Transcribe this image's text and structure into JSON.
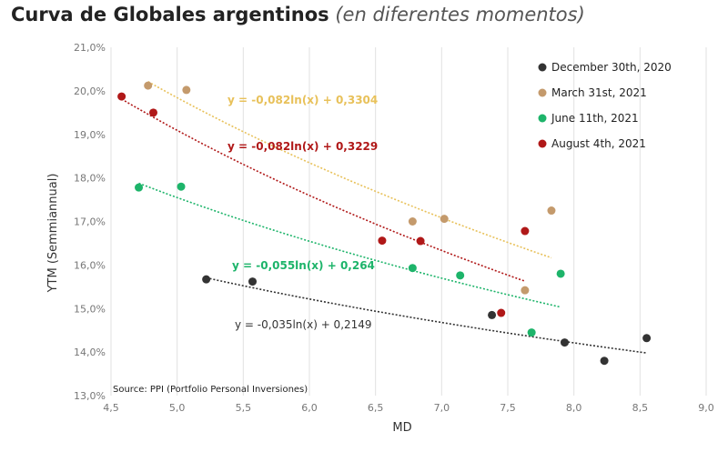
{
  "title": {
    "main": "Curva de Globales argentinos",
    "sub": "(en diferentes momentos)"
  },
  "chart_data": {
    "type": "scatter",
    "xlabel": "MD",
    "ylabel": "YTM (Semmiannual)",
    "xlim": [
      4.5,
      9.0
    ],
    "ylim": [
      13.0,
      21.0
    ],
    "x_ticks": [
      "4,5",
      "5,0",
      "5,5",
      "6,0",
      "6,5",
      "7,0",
      "7,5",
      "8,0",
      "8,5",
      "9,0"
    ],
    "y_ticks": [
      "13,0%",
      "14,0%",
      "15,0%",
      "16,0%",
      "17,0%",
      "18,0%",
      "19,0%",
      "20,0%",
      "21,0%"
    ],
    "grid": "vertical",
    "legend": "top-right",
    "source": "Source: PPI (Portfolio Personal Inversiones)",
    "series": [
      {
        "name": "December 30th, 2020",
        "color": "#333333",
        "points": [
          [
            5.22,
            15.67
          ],
          [
            5.57,
            15.62
          ],
          [
            7.38,
            14.85
          ],
          [
            7.93,
            14.22
          ],
          [
            8.23,
            13.8
          ],
          [
            8.55,
            14.32
          ]
        ],
        "trend": {
          "a": -0.035,
          "b": 0.2149,
          "x_range": [
            5.22,
            8.55
          ]
        },
        "equation": "y = -0,035ln(x) + 0,2149"
      },
      {
        "name": "March 31st, 2021",
        "color": "#c49a6c",
        "points": [
          [
            4.78,
            20.12
          ],
          [
            5.07,
            20.02
          ],
          [
            6.78,
            17.0
          ],
          [
            7.02,
            17.06
          ],
          [
            7.63,
            15.42
          ],
          [
            7.83,
            17.25
          ]
        ],
        "trend": {
          "a": -0.082,
          "b": 0.3304,
          "x_range": [
            4.78,
            7.83
          ]
        },
        "equation": "y = -0,082ln(x) + 0,3304"
      },
      {
        "name": "June 11th, 2021",
        "color": "#1db46a",
        "points": [
          [
            4.71,
            17.78
          ],
          [
            5.03,
            17.8
          ],
          [
            6.78,
            15.93
          ],
          [
            7.14,
            15.76
          ],
          [
            7.68,
            14.45
          ],
          [
            7.9,
            15.8
          ]
        ],
        "trend": {
          "a": -0.055,
          "b": 0.264,
          "x_range": [
            4.71,
            7.9
          ]
        },
        "equation": "y = -0,055ln(x) + 0,264"
      },
      {
        "name": "August 4th, 2021",
        "color": "#b01818",
        "points": [
          [
            4.58,
            19.87
          ],
          [
            4.82,
            19.5
          ],
          [
            6.55,
            16.56
          ],
          [
            6.84,
            16.55
          ],
          [
            7.45,
            14.9
          ],
          [
            7.63,
            16.78
          ]
        ],
        "trend": {
          "a": -0.082,
          "b": 0.3229,
          "x_range": [
            4.58,
            7.63
          ]
        },
        "equation": "y = -0,082ln(x) + 0,3229"
      }
    ],
    "equation_colors": [
      "#333333",
      "#e8c15a",
      "#1db46a",
      "#b01818"
    ]
  }
}
